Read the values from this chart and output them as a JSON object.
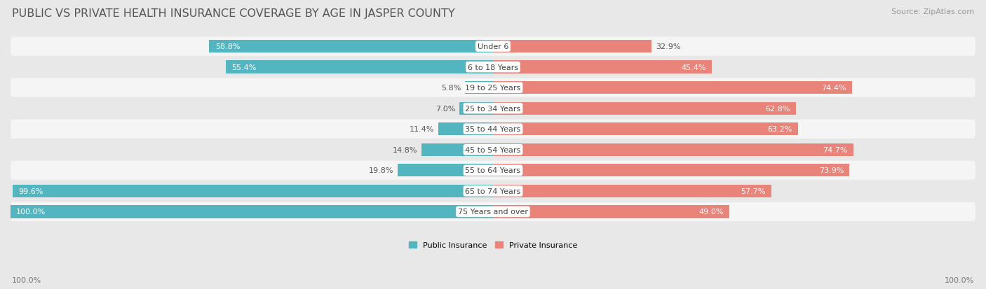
{
  "title": "PUBLIC VS PRIVATE HEALTH INSURANCE COVERAGE BY AGE IN JASPER COUNTY",
  "source": "Source: ZipAtlas.com",
  "categories": [
    "Under 6",
    "6 to 18 Years",
    "19 to 25 Years",
    "25 to 34 Years",
    "35 to 44 Years",
    "45 to 54 Years",
    "55 to 64 Years",
    "65 to 74 Years",
    "75 Years and over"
  ],
  "public_values": [
    58.8,
    55.4,
    5.8,
    7.0,
    11.4,
    14.8,
    19.8,
    99.6,
    100.0
  ],
  "private_values": [
    32.9,
    45.4,
    74.4,
    62.8,
    63.2,
    74.7,
    73.9,
    57.7,
    49.0
  ],
  "public_color": "#52b5c0",
  "private_color": "#e8847a",
  "bg_color": "#e8e8e8",
  "row_bg_even": "#f5f5f5",
  "row_bg_odd": "#e8e8e8",
  "max_value": 100.0,
  "legend_public": "Public Insurance",
  "legend_private": "Private Insurance",
  "title_fontsize": 11.5,
  "label_fontsize": 8.0,
  "source_fontsize": 8.0,
  "bar_height": 0.62,
  "footer_label": "100.0%"
}
